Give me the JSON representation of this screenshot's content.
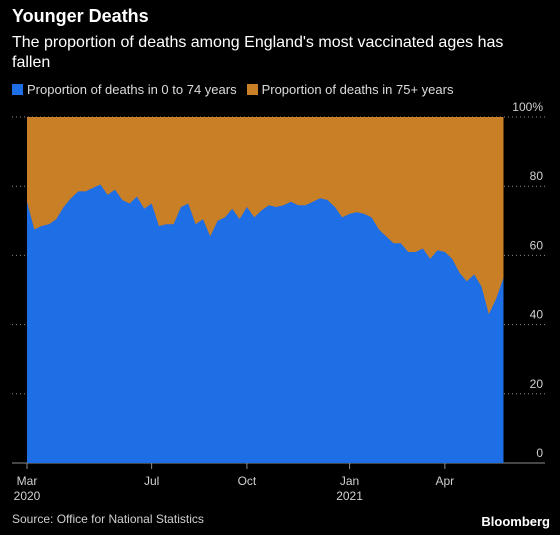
{
  "header": {
    "title": "Younger Deaths",
    "subtitle": "The proportion of deaths among England's most vaccinated ages has fallen"
  },
  "footer": {
    "source": "Source: Office for National Statistics",
    "brand": "Bloomberg"
  },
  "colors": {
    "series_under75": "#1e6ee6",
    "series_75plus": "#c87f26",
    "background": "#000000",
    "grid": "#8c8c8c"
  },
  "chart_data": {
    "type": "area",
    "stacked": true,
    "percent": true,
    "series": [
      {
        "name": "Proportion of deaths in 0 to 74 years",
        "values": [
          75.5,
          67.5,
          68.5,
          69,
          70.5,
          74,
          76.5,
          78.5,
          78.5,
          79.5,
          80.5,
          77.5,
          79,
          76,
          75,
          77,
          73.5,
          75,
          68.5,
          69,
          69,
          74,
          75,
          69,
          70.5,
          65.5,
          70,
          71,
          73.5,
          70.5,
          74,
          71,
          73,
          74.5,
          74,
          74.5,
          75.5,
          74.5,
          74.5,
          75.5,
          76.5,
          76,
          74,
          71,
          72,
          72.5,
          72,
          71,
          67.5,
          65.5,
          63.5,
          63.5,
          61,
          61,
          62,
          59,
          61.5,
          61,
          59,
          55,
          52.5,
          54.5,
          51,
          43,
          47.5,
          53.5
        ]
      },
      {
        "name": "Proportion of deaths in 75+ years",
        "values": [
          24.5,
          32.5,
          31.5,
          31,
          29.5,
          26,
          23.5,
          21.5,
          21.5,
          20.5,
          19.5,
          22.5,
          21,
          24,
          25,
          23,
          26.5,
          25,
          31.5,
          31,
          31,
          26,
          25,
          31,
          29.5,
          34.5,
          30,
          29,
          26.5,
          29.5,
          26,
          29,
          27,
          25.5,
          26,
          25.5,
          24.5,
          25.5,
          25.5,
          24.5,
          23.5,
          24,
          26,
          29,
          28,
          27.5,
          28,
          29,
          32.5,
          34.5,
          36.5,
          36.5,
          39,
          39,
          38,
          41,
          38.5,
          39,
          41,
          45,
          47.5,
          45.5,
          49,
          57,
          52.5,
          46.5
        ]
      }
    ],
    "x_start": "2020-03-06",
    "x_step_weeks": 1,
    "x_ticks": [
      {
        "label": "Mar",
        "sublabel": "2020",
        "week": 0
      },
      {
        "label": "Jul",
        "sublabel": "",
        "week": 17
      },
      {
        "label": "Oct",
        "sublabel": "",
        "week": 30
      },
      {
        "label": "Jan",
        "sublabel": "2021",
        "week": 44
      },
      {
        "label": "Apr",
        "sublabel": "",
        "week": 57
      }
    ],
    "y_ticks": [
      "0",
      "20",
      "40",
      "60",
      "80",
      "100%"
    ],
    "ylim": [
      0,
      100
    ],
    "grid": true
  }
}
